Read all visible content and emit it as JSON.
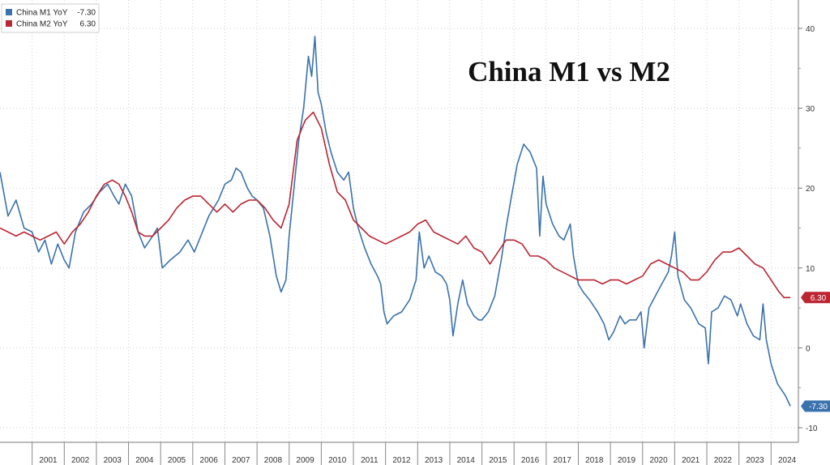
{
  "chart_data": {
    "type": "line",
    "title": "China M1 vs M2",
    "ylim": [
      -10,
      40
    ],
    "y_ticks": [
      40,
      30,
      20,
      10,
      0,
      -10
    ],
    "years": [
      "2001",
      "2002",
      "2003",
      "2004",
      "2005",
      "2006",
      "2007",
      "2008",
      "2009",
      "2010",
      "2011",
      "2012",
      "2013",
      "2014",
      "2015",
      "2016",
      "2017",
      "2018",
      "2019",
      "2020",
      "2021",
      "2022",
      "2023",
      "2024"
    ],
    "grid": true,
    "legend_position": "top-left",
    "series": [
      {
        "name": "China M1 YoY",
        "last_value": "-7.30",
        "color": "#3a72ad",
        "points": [
          [
            2000.0,
            22.0
          ],
          [
            2000.25,
            16.5
          ],
          [
            2000.5,
            18.5
          ],
          [
            2000.75,
            15.0
          ],
          [
            2001.0,
            14.5
          ],
          [
            2001.2,
            12.0
          ],
          [
            2001.4,
            13.5
          ],
          [
            2001.6,
            10.5
          ],
          [
            2001.8,
            13.0
          ],
          [
            2002.0,
            11.0
          ],
          [
            2002.15,
            10.0
          ],
          [
            2002.35,
            14.5
          ],
          [
            2002.6,
            17.0
          ],
          [
            2002.85,
            18.0
          ],
          [
            2003.1,
            19.5
          ],
          [
            2003.35,
            20.5
          ],
          [
            2003.55,
            19.0
          ],
          [
            2003.7,
            18.0
          ],
          [
            2003.9,
            20.5
          ],
          [
            2004.1,
            19.0
          ],
          [
            2004.3,
            14.5
          ],
          [
            2004.5,
            12.5
          ],
          [
            2004.75,
            14.0
          ],
          [
            2004.9,
            15.0
          ],
          [
            2005.05,
            10.0
          ],
          [
            2005.3,
            11.0
          ],
          [
            2005.6,
            12.0
          ],
          [
            2005.85,
            13.5
          ],
          [
            2006.05,
            12.0
          ],
          [
            2006.25,
            14.0
          ],
          [
            2006.5,
            16.5
          ],
          [
            2006.8,
            18.5
          ],
          [
            2007.0,
            20.5
          ],
          [
            2007.2,
            21.0
          ],
          [
            2007.35,
            22.5
          ],
          [
            2007.5,
            22.0
          ],
          [
            2007.7,
            20.0
          ],
          [
            2007.85,
            19.0
          ],
          [
            2008.0,
            18.5
          ],
          [
            2008.2,
            17.5
          ],
          [
            2008.4,
            14.0
          ],
          [
            2008.6,
            9.0
          ],
          [
            2008.75,
            7.0
          ],
          [
            2008.9,
            8.5
          ],
          [
            2009.0,
            14.0
          ],
          [
            2009.15,
            20.0
          ],
          [
            2009.3,
            26.0
          ],
          [
            2009.45,
            30.0
          ],
          [
            2009.6,
            36.5
          ],
          [
            2009.7,
            34.0
          ],
          [
            2009.8,
            39.0
          ],
          [
            2009.9,
            32.0
          ],
          [
            2010.0,
            30.5
          ],
          [
            2010.15,
            27.0
          ],
          [
            2010.3,
            24.5
          ],
          [
            2010.5,
            22.0
          ],
          [
            2010.7,
            21.0
          ],
          [
            2010.85,
            22.0
          ],
          [
            2011.0,
            17.5
          ],
          [
            2011.15,
            15.0
          ],
          [
            2011.35,
            12.5
          ],
          [
            2011.55,
            10.5
          ],
          [
            2011.75,
            9.0
          ],
          [
            2011.85,
            8.0
          ],
          [
            2011.95,
            4.5
          ],
          [
            2012.05,
            3.0
          ],
          [
            2012.25,
            4.0
          ],
          [
            2012.5,
            4.5
          ],
          [
            2012.75,
            6.0
          ],
          [
            2012.95,
            8.5
          ],
          [
            2013.05,
            14.5
          ],
          [
            2013.2,
            10.0
          ],
          [
            2013.35,
            11.5
          ],
          [
            2013.55,
            9.5
          ],
          [
            2013.75,
            9.0
          ],
          [
            2013.9,
            8.0
          ],
          [
            2014.0,
            6.0
          ],
          [
            2014.1,
            1.5
          ],
          [
            2014.25,
            5.5
          ],
          [
            2014.4,
            8.5
          ],
          [
            2014.55,
            5.5
          ],
          [
            2014.75,
            4.0
          ],
          [
            2014.9,
            3.5
          ],
          [
            2015.0,
            3.5
          ],
          [
            2015.2,
            4.5
          ],
          [
            2015.4,
            6.5
          ],
          [
            2015.6,
            11.0
          ],
          [
            2015.75,
            15.0
          ],
          [
            2015.9,
            18.5
          ],
          [
            2016.1,
            23.0
          ],
          [
            2016.3,
            25.5
          ],
          [
            2016.5,
            24.5
          ],
          [
            2016.7,
            22.5
          ],
          [
            2016.8,
            14.0
          ],
          [
            2016.9,
            21.5
          ],
          [
            2017.0,
            18.0
          ],
          [
            2017.2,
            15.5
          ],
          [
            2017.4,
            14.0
          ],
          [
            2017.55,
            13.5
          ],
          [
            2017.75,
            15.5
          ],
          [
            2017.85,
            11.5
          ],
          [
            2018.0,
            8.0
          ],
          [
            2018.15,
            7.0
          ],
          [
            2018.35,
            6.0
          ],
          [
            2018.6,
            4.5
          ],
          [
            2018.8,
            3.0
          ],
          [
            2018.95,
            1.0
          ],
          [
            2019.1,
            2.0
          ],
          [
            2019.3,
            4.0
          ],
          [
            2019.45,
            3.0
          ],
          [
            2019.6,
            3.5
          ],
          [
            2019.8,
            3.5
          ],
          [
            2019.95,
            4.5
          ],
          [
            2020.05,
            0.0
          ],
          [
            2020.2,
            5.0
          ],
          [
            2020.4,
            6.5
          ],
          [
            2020.6,
            8.0
          ],
          [
            2020.8,
            9.5
          ],
          [
            2020.9,
            11.5
          ],
          [
            2021.0,
            14.5
          ],
          [
            2021.1,
            9.0
          ],
          [
            2021.3,
            6.0
          ],
          [
            2021.5,
            5.0
          ],
          [
            2021.75,
            3.0
          ],
          [
            2021.95,
            2.5
          ],
          [
            2022.05,
            -2.0
          ],
          [
            2022.15,
            4.5
          ],
          [
            2022.35,
            5.0
          ],
          [
            2022.55,
            6.5
          ],
          [
            2022.75,
            6.0
          ],
          [
            2022.95,
            4.0
          ],
          [
            2023.05,
            5.5
          ],
          [
            2023.25,
            3.0
          ],
          [
            2023.45,
            1.5
          ],
          [
            2023.65,
            1.0
          ],
          [
            2023.75,
            5.5
          ],
          [
            2023.85,
            1.0
          ],
          [
            2024.0,
            -2.0
          ],
          [
            2024.2,
            -4.5
          ],
          [
            2024.45,
            -6.0
          ],
          [
            2024.6,
            -7.3
          ]
        ]
      },
      {
        "name": "China M2 YoY",
        "last_value": "6.30",
        "color": "#bc2532",
        "points": [
          [
            2000.0,
            15.0
          ],
          [
            2000.25,
            14.5
          ],
          [
            2000.5,
            14.0
          ],
          [
            2000.75,
            14.5
          ],
          [
            2001.0,
            14.0
          ],
          [
            2001.25,
            13.5
          ],
          [
            2001.5,
            14.0
          ],
          [
            2001.75,
            14.5
          ],
          [
            2002.0,
            13.0
          ],
          [
            2002.25,
            14.5
          ],
          [
            2002.5,
            15.5
          ],
          [
            2002.75,
            17.0
          ],
          [
            2003.0,
            19.0
          ],
          [
            2003.25,
            20.5
          ],
          [
            2003.5,
            21.0
          ],
          [
            2003.7,
            20.5
          ],
          [
            2003.9,
            19.0
          ],
          [
            2004.1,
            17.0
          ],
          [
            2004.3,
            14.5
          ],
          [
            2004.5,
            14.0
          ],
          [
            2004.75,
            14.0
          ],
          [
            2005.0,
            15.0
          ],
          [
            2005.25,
            16.0
          ],
          [
            2005.5,
            17.5
          ],
          [
            2005.75,
            18.5
          ],
          [
            2006.0,
            19.0
          ],
          [
            2006.25,
            19.0
          ],
          [
            2006.5,
            18.0
          ],
          [
            2006.75,
            17.0
          ],
          [
            2007.0,
            18.0
          ],
          [
            2007.25,
            17.0
          ],
          [
            2007.5,
            18.0
          ],
          [
            2007.75,
            18.5
          ],
          [
            2008.0,
            18.5
          ],
          [
            2008.25,
            17.5
          ],
          [
            2008.5,
            16.0
          ],
          [
            2008.75,
            15.0
          ],
          [
            2009.0,
            18.0
          ],
          [
            2009.25,
            26.0
          ],
          [
            2009.5,
            28.5
          ],
          [
            2009.75,
            29.5
          ],
          [
            2010.0,
            27.5
          ],
          [
            2010.25,
            23.0
          ],
          [
            2010.5,
            19.5
          ],
          [
            2010.75,
            18.5
          ],
          [
            2011.0,
            16.0
          ],
          [
            2011.25,
            15.0
          ],
          [
            2011.5,
            14.0
          ],
          [
            2011.75,
            13.5
          ],
          [
            2012.0,
            13.0
          ],
          [
            2012.25,
            13.5
          ],
          [
            2012.5,
            14.0
          ],
          [
            2012.75,
            14.5
          ],
          [
            2013.0,
            15.5
          ],
          [
            2013.25,
            16.0
          ],
          [
            2013.5,
            14.5
          ],
          [
            2013.75,
            14.0
          ],
          [
            2014.0,
            13.5
          ],
          [
            2014.25,
            13.0
          ],
          [
            2014.5,
            14.0
          ],
          [
            2014.75,
            12.5
          ],
          [
            2015.0,
            12.0
          ],
          [
            2015.25,
            10.5
          ],
          [
            2015.5,
            12.0
          ],
          [
            2015.75,
            13.5
          ],
          [
            2016.0,
            13.5
          ],
          [
            2016.25,
            13.0
          ],
          [
            2016.5,
            11.5
          ],
          [
            2016.75,
            11.5
          ],
          [
            2017.0,
            11.0
          ],
          [
            2017.25,
            10.0
          ],
          [
            2017.5,
            9.5
          ],
          [
            2017.75,
            9.0
          ],
          [
            2018.0,
            8.5
          ],
          [
            2018.25,
            8.5
          ],
          [
            2018.5,
            8.5
          ],
          [
            2018.75,
            8.0
          ],
          [
            2019.0,
            8.5
          ],
          [
            2019.25,
            8.5
          ],
          [
            2019.5,
            8.0
          ],
          [
            2019.75,
            8.5
          ],
          [
            2020.0,
            9.0
          ],
          [
            2020.25,
            10.5
          ],
          [
            2020.5,
            11.0
          ],
          [
            2020.75,
            10.5
          ],
          [
            2021.0,
            10.0
          ],
          [
            2021.25,
            9.5
          ],
          [
            2021.5,
            8.5
          ],
          [
            2021.75,
            8.5
          ],
          [
            2022.0,
            9.5
          ],
          [
            2022.25,
            11.0
          ],
          [
            2022.5,
            12.0
          ],
          [
            2022.75,
            12.0
          ],
          [
            2023.0,
            12.5
          ],
          [
            2023.25,
            11.5
          ],
          [
            2023.5,
            10.5
          ],
          [
            2023.75,
            10.0
          ],
          [
            2024.0,
            8.5
          ],
          [
            2024.25,
            7.0
          ],
          [
            2024.4,
            6.3
          ],
          [
            2024.6,
            6.3
          ]
        ]
      }
    ]
  }
}
